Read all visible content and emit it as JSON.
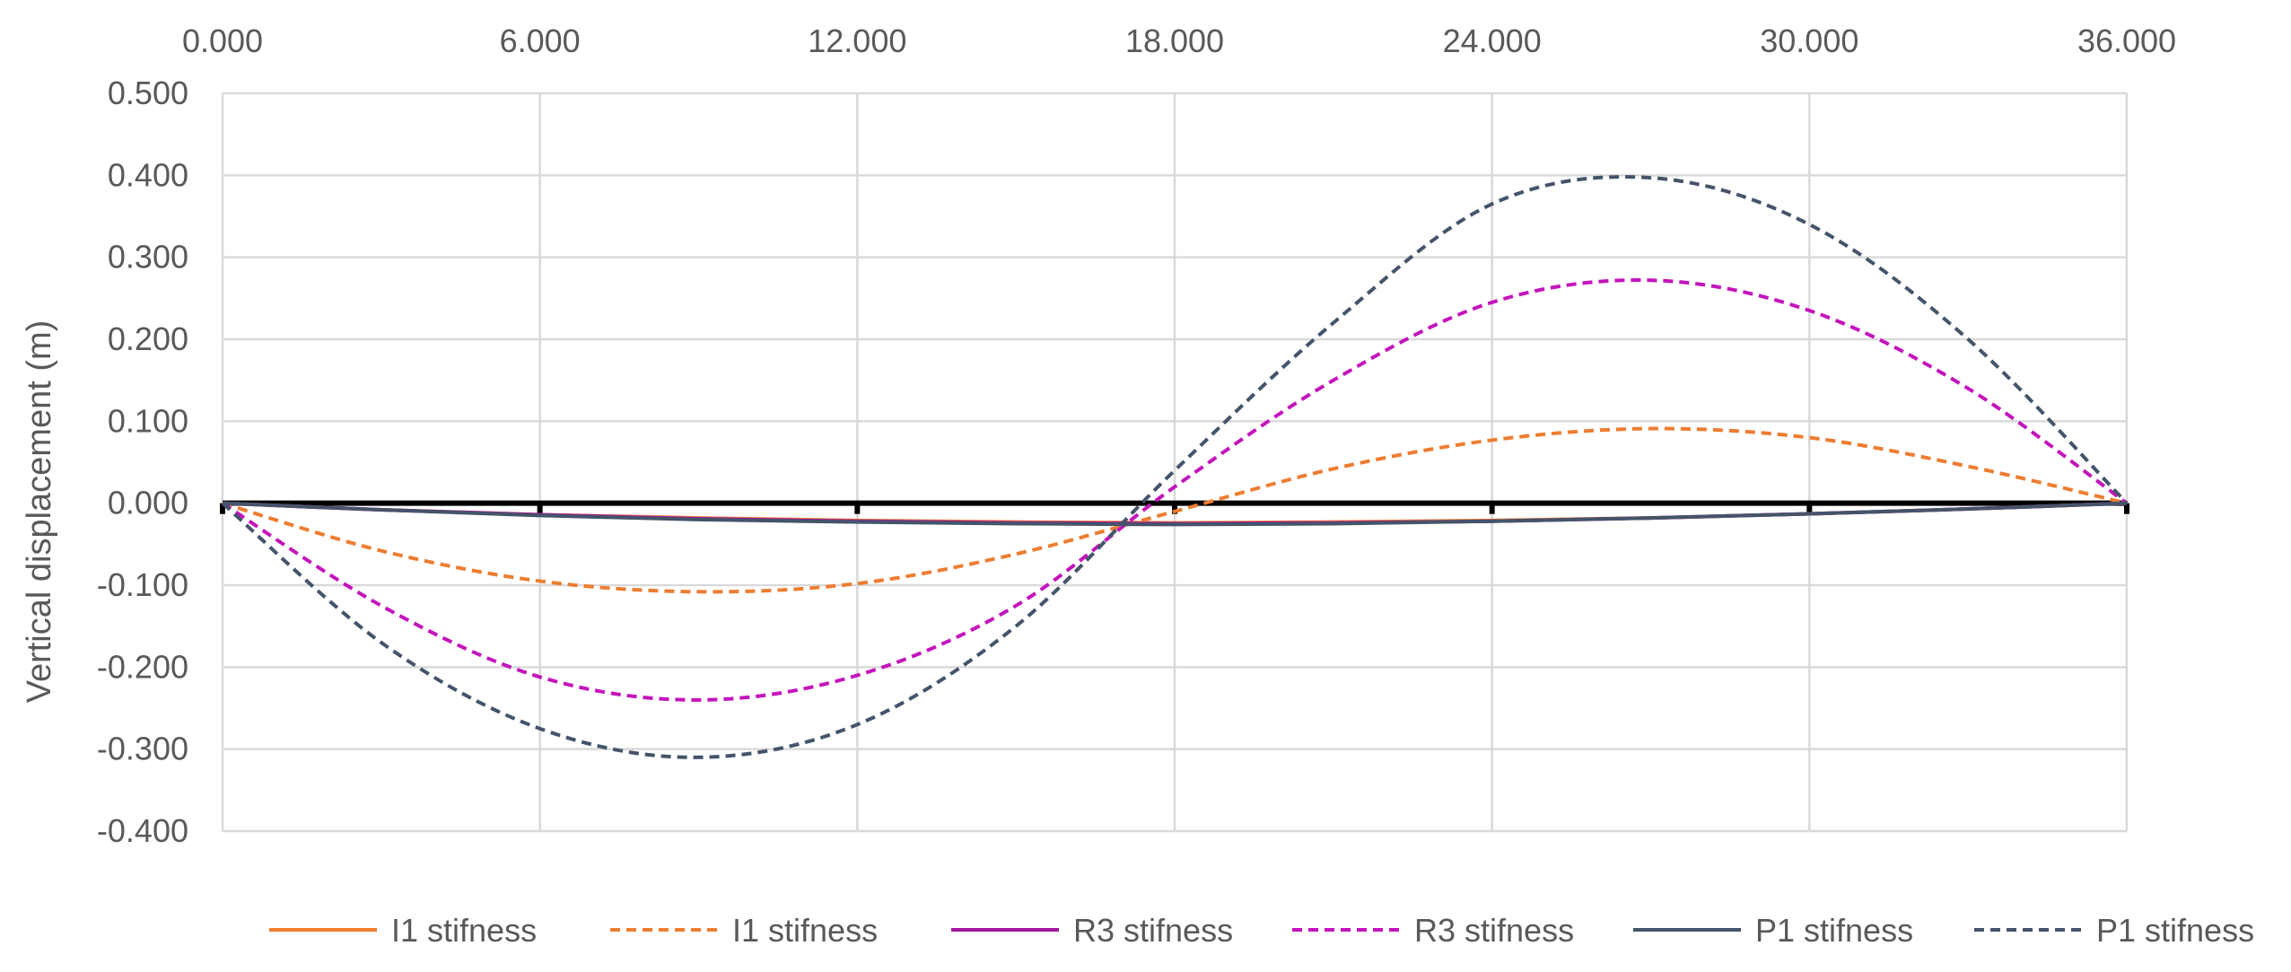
{
  "chart_data": {
    "type": "line",
    "title": "",
    "xlabel": "",
    "ylabel": "Vertical displacement (m)",
    "xlim": [
      0,
      36
    ],
    "ylim": [
      -0.4,
      0.5
    ],
    "x_axis_position": "top",
    "grid": true,
    "legend_position": "bottom",
    "x_ticks": [
      0,
      6,
      12,
      18,
      24,
      30,
      36
    ],
    "x_tick_labels": [
      "0.000",
      "6.000",
      "12.000",
      "18.000",
      "24.000",
      "30.000",
      "36.000"
    ],
    "y_ticks": [
      0.5,
      0.4,
      0.3,
      0.2,
      0.1,
      0.0,
      -0.1,
      -0.2,
      -0.3,
      -0.4
    ],
    "y_tick_labels": [
      "0.500",
      "0.400",
      "0.300",
      "0.200",
      "0.100",
      "0.000",
      "-0.100",
      "-0.200",
      "-0.300",
      "-0.400"
    ],
    "x": [
      0,
      3,
      6,
      9,
      12,
      15,
      18,
      21,
      24,
      27,
      30,
      33,
      36
    ],
    "series": [
      {
        "name": "I1 stifness",
        "color": "#ED7D31",
        "style": "solid",
        "values": [
          0,
          -0.008,
          -0.014,
          -0.018,
          -0.021,
          -0.023,
          -0.024,
          -0.023,
          -0.021,
          -0.018,
          -0.013,
          -0.007,
          0
        ]
      },
      {
        "name": "I1 stifness",
        "color": "#ED7D31",
        "style": "dashed",
        "values": [
          0,
          -0.058,
          -0.095,
          -0.108,
          -0.098,
          -0.062,
          -0.01,
          0.042,
          0.077,
          0.091,
          0.08,
          0.045,
          0
        ]
      },
      {
        "name": "R3 stifness",
        "color": "#A5179E",
        "style": "solid",
        "values": [
          0,
          -0.008,
          -0.014,
          -0.019,
          -0.022,
          -0.024,
          -0.025,
          -0.024,
          -0.022,
          -0.018,
          -0.013,
          -0.007,
          0
        ]
      },
      {
        "name": "R3 stifness",
        "color": "#C414BC",
        "style": "dashed",
        "values": [
          0,
          -0.125,
          -0.212,
          -0.24,
          -0.21,
          -0.125,
          0.02,
          0.15,
          0.245,
          0.272,
          0.235,
          0.14,
          0
        ]
      },
      {
        "name": "P1 stifness",
        "color": "#44546A",
        "style": "solid",
        "values": [
          0,
          -0.008,
          -0.015,
          -0.02,
          -0.023,
          -0.025,
          -0.026,
          -0.025,
          -0.022,
          -0.018,
          -0.013,
          -0.007,
          0
        ]
      },
      {
        "name": "P1 stifness",
        "color": "#44546A",
        "style": "dashed",
        "values": [
          0,
          -0.17,
          -0.275,
          -0.31,
          -0.27,
          -0.15,
          0.04,
          0.22,
          0.365,
          0.397,
          0.34,
          0.2,
          0
        ]
      }
    ]
  }
}
